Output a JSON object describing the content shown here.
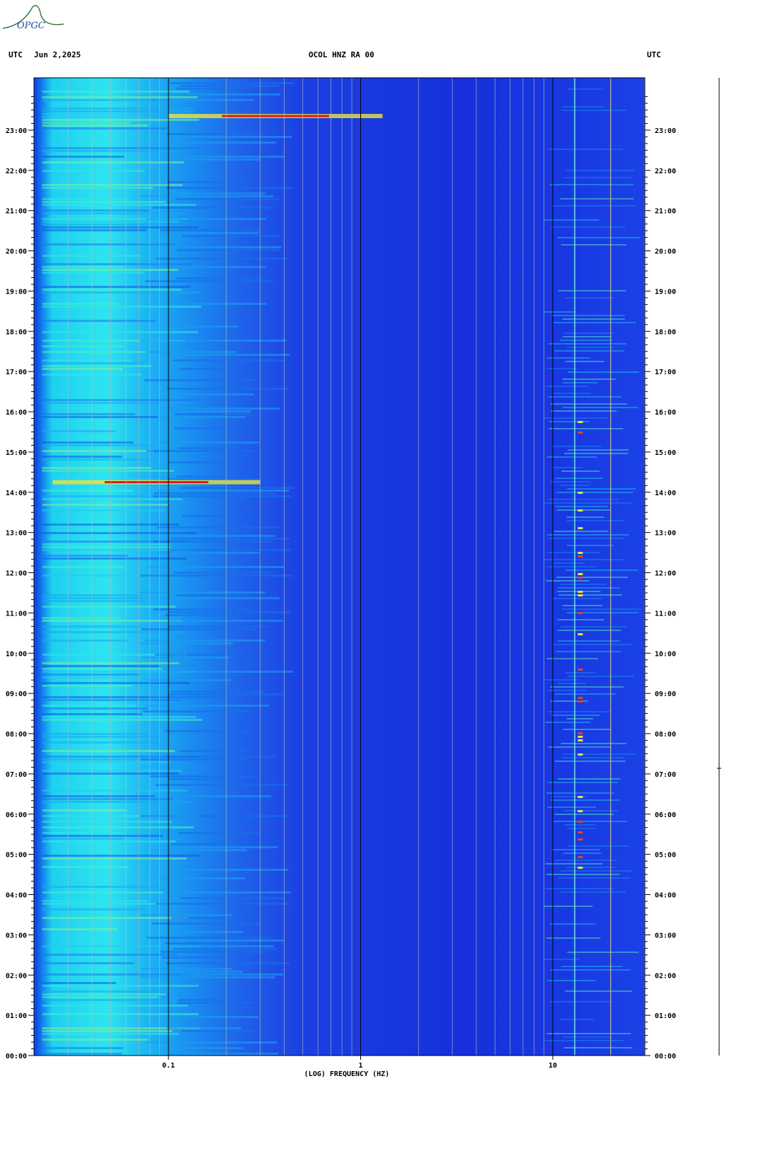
{
  "header": {
    "logo_text": "OPGC",
    "left_label": "UTC",
    "date": "Jun 2,2025",
    "station": "OCOL HNZ RA 00",
    "right_label": "UTC"
  },
  "colors": {
    "background_low": "#1a2fe0",
    "mid": "#1ab8f0",
    "high": "#f0e43a",
    "peak": "#d81a1a"
  },
  "chart_data": {
    "type": "heatmap",
    "title": "OCOL HNZ RA 00",
    "xlabel": "(LOG) FREQUENCY (HZ)",
    "x_scale": "log",
    "xlim": [
      0.02,
      30
    ],
    "x_ticks": [
      {
        "value": 0.1,
        "label": "0.1"
      },
      {
        "value": 1,
        "label": "1"
      },
      {
        "value": 10,
        "label": "10"
      }
    ],
    "ylim_hours": [
      0,
      24
    ],
    "y_ticks": [
      "00:00",
      "01:00",
      "02:00",
      "03:00",
      "04:00",
      "05:00",
      "06:00",
      "07:00",
      "08:00",
      "09:00",
      "10:00",
      "11:00",
      "12:00",
      "13:00",
      "14:00",
      "15:00",
      "16:00",
      "17:00",
      "18:00",
      "19:00",
      "20:00",
      "21:00",
      "22:00",
      "23:00"
    ],
    "events": [
      {
        "time_hours": 23.35,
        "freq_min": 0.1,
        "freq_max": 1.3
      },
      {
        "time_hours": 14.25,
        "freq_min": 0.025,
        "freq_max": 0.3
      }
    ]
  }
}
